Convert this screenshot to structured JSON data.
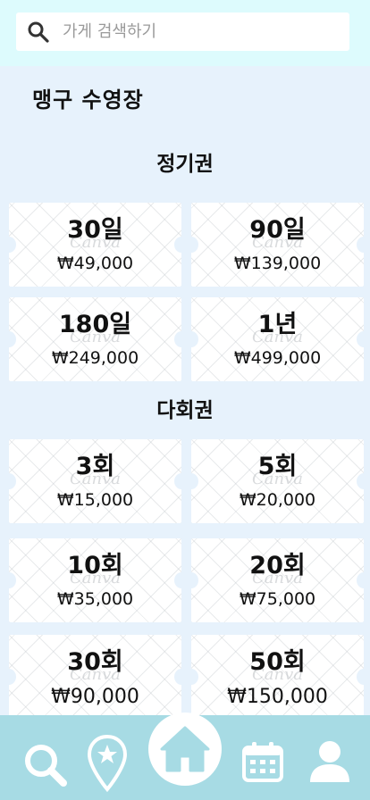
{
  "search": {
    "placeholder": "가게 검색하기"
  },
  "page_title": "맹구 수영장",
  "sections": [
    {
      "title": "정기권",
      "tickets": [
        {
          "name": "30일",
          "price": "₩49,000"
        },
        {
          "name": "90일",
          "price": "₩139,000"
        },
        {
          "name": "180일",
          "price": "₩249,000"
        },
        {
          "name": "1년",
          "price": "₩499,000"
        }
      ]
    },
    {
      "title": "다회권",
      "tickets": [
        {
          "name": "3회",
          "price": "₩15,000"
        },
        {
          "name": "5회",
          "price": "₩20,000"
        },
        {
          "name": "10회",
          "price": "₩35,000"
        },
        {
          "name": "20회",
          "price": "₩75,000"
        },
        {
          "name": "30회",
          "price": "₩90,000"
        },
        {
          "name": "50회",
          "price": "₩150,000"
        }
      ]
    }
  ],
  "watermark": "Canva",
  "nav": {
    "items": [
      "search-icon",
      "favorite-pin-icon",
      "home-icon",
      "calendar-icon",
      "profile-icon"
    ]
  },
  "colors": {
    "background": "#e7f2fc",
    "search_band": "#ddfbfd",
    "nav_bar": "#a7dbe4",
    "nav_icon": "#ffffff"
  }
}
